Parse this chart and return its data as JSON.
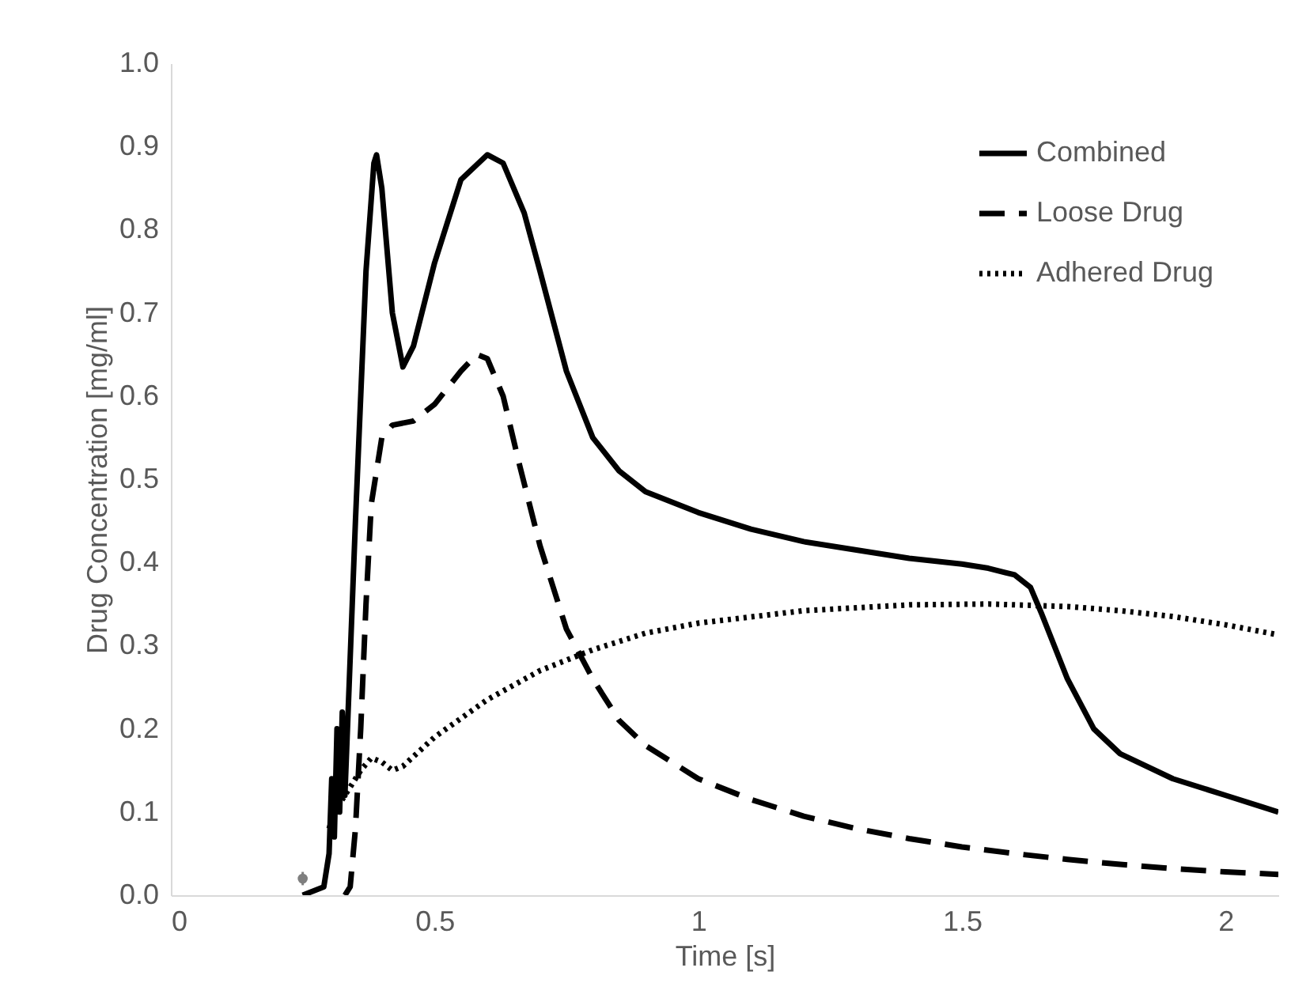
{
  "chart_data": {
    "type": "line",
    "xlabel": "Time [s]",
    "ylabel": "Drug Concentration [mg/ml]",
    "xlim": [
      0,
      2.1
    ],
    "ylim": [
      0,
      1.0
    ],
    "xticks": [
      0,
      0.5,
      1,
      1.5,
      2
    ],
    "yticks": [
      {
        "value": 0,
        "label": "0.0"
      },
      {
        "value": 0.1,
        "label": "0.1"
      },
      {
        "value": 0.2,
        "label": "0.2"
      },
      {
        "value": 0.3,
        "label": "0.3"
      },
      {
        "value": 0.4,
        "label": "0.4"
      },
      {
        "value": 0.5,
        "label": "0.5"
      },
      {
        "value": 0.6,
        "label": "0.6"
      },
      {
        "value": 0.7,
        "label": "0.7"
      },
      {
        "value": 0.8,
        "label": "0.8"
      },
      {
        "value": 0.9,
        "label": "0.9"
      },
      {
        "value": 1.0,
        "label": "1.0"
      }
    ],
    "legend": "top right",
    "series": [
      {
        "name": "Combined",
        "color": "#000000",
        "line_style": "solid",
        "x": [
          0.25,
          0.29,
          0.3,
          0.305,
          0.31,
          0.315,
          0.32,
          0.325,
          0.33,
          0.35,
          0.37,
          0.385,
          0.39,
          0.4,
          0.42,
          0.44,
          0.46,
          0.5,
          0.55,
          0.6,
          0.63,
          0.67,
          0.7,
          0.75,
          0.8,
          0.85,
          0.9,
          1.0,
          1.1,
          1.2,
          1.3,
          1.4,
          1.5,
          1.55,
          1.6,
          1.63,
          1.65,
          1.7,
          1.75,
          1.8,
          1.9,
          2.0,
          2.1
        ],
        "values": [
          0,
          0.01,
          0.05,
          0.14,
          0.07,
          0.2,
          0.1,
          0.22,
          0.12,
          0.45,
          0.75,
          0.88,
          0.89,
          0.85,
          0.7,
          0.635,
          0.66,
          0.76,
          0.86,
          0.89,
          0.88,
          0.82,
          0.75,
          0.63,
          0.55,
          0.51,
          0.485,
          0.46,
          0.44,
          0.425,
          0.415,
          0.405,
          0.398,
          0.393,
          0.385,
          0.37,
          0.34,
          0.26,
          0.2,
          0.17,
          0.14,
          0.12,
          0.1
        ]
      },
      {
        "name": "Loose Drug",
        "color": "#000000",
        "line_style": "dashed",
        "x": [
          0.33,
          0.34,
          0.35,
          0.36,
          0.37,
          0.38,
          0.4,
          0.42,
          0.46,
          0.5,
          0.55,
          0.58,
          0.6,
          0.63,
          0.66,
          0.7,
          0.75,
          0.8,
          0.85,
          0.9,
          1.0,
          1.1,
          1.2,
          1.3,
          1.4,
          1.5,
          1.6,
          1.7,
          1.8,
          1.9,
          2.0,
          2.1
        ],
        "values": [
          0,
          0.01,
          0.08,
          0.2,
          0.35,
          0.47,
          0.55,
          0.565,
          0.57,
          0.59,
          0.63,
          0.65,
          0.645,
          0.6,
          0.52,
          0.42,
          0.32,
          0.26,
          0.21,
          0.18,
          0.14,
          0.115,
          0.095,
          0.08,
          0.068,
          0.058,
          0.05,
          0.043,
          0.037,
          0.032,
          0.028,
          0.025
        ]
      },
      {
        "name": "Adhered Drug",
        "color": "#000000",
        "line_style": "dotted",
        "x": [
          0.3,
          0.31,
          0.33,
          0.36,
          0.38,
          0.4,
          0.42,
          0.44,
          0.5,
          0.6,
          0.7,
          0.8,
          0.9,
          1.0,
          1.2,
          1.4,
          1.55,
          1.7,
          1.8,
          1.9,
          2.0,
          2.1
        ],
        "values": [
          0.08,
          0.1,
          0.12,
          0.15,
          0.165,
          0.16,
          0.15,
          0.155,
          0.19,
          0.235,
          0.27,
          0.295,
          0.315,
          0.327,
          0.342,
          0.349,
          0.35,
          0.347,
          0.342,
          0.335,
          0.325,
          0.313
        ]
      },
      {
        "type": "scatter",
        "color": "#7f7f7f",
        "x": [
          0.25
        ],
        "values": [
          0.02
        ],
        "errors": [
          0.008
        ]
      }
    ]
  }
}
